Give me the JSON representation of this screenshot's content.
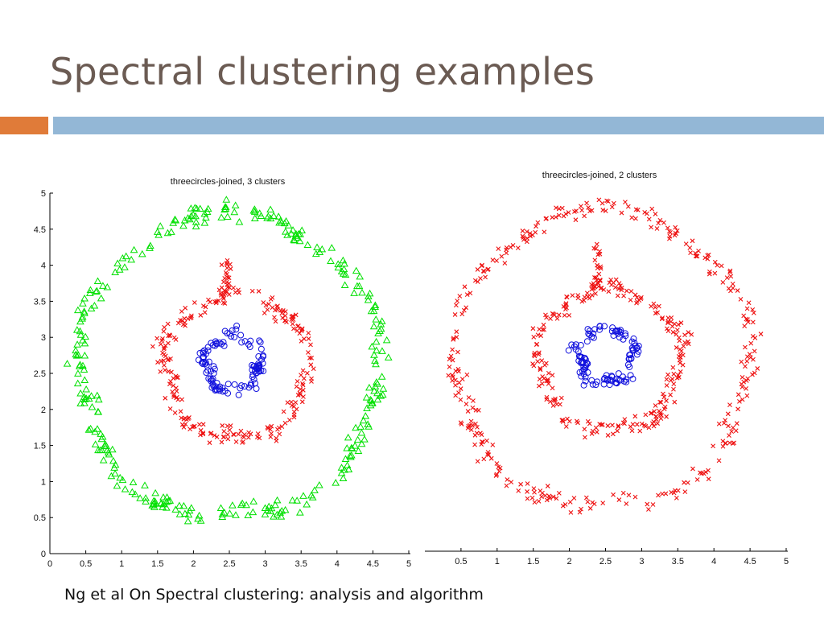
{
  "slide": {
    "title": "Spectral clustering examples",
    "caption": "Ng et al On Spectral clustering: analysis and algorithm",
    "colors": {
      "title": "#6b5b53",
      "accent_orange": "#e07b39",
      "accent_blue": "#93b7d6"
    }
  },
  "chart_data": [
    {
      "type": "scatter",
      "title": "threecircles-joined, 3 clusters",
      "xlim": [
        0,
        5
      ],
      "ylim": [
        0,
        5
      ],
      "xticks": [
        "0",
        "0.5",
        "1",
        "1.5",
        "2",
        "2.5",
        "3",
        "3.5",
        "4",
        "4.5",
        "5"
      ],
      "yticks": [
        "0",
        "0.5",
        "1",
        "1.5",
        "2",
        "2.5",
        "3",
        "3.5",
        "4",
        "4.5",
        "5"
      ],
      "grid": false,
      "series": [
        {
          "shape": "ring",
          "marker": "triangle",
          "color": "#00e000",
          "center": [
            2.5,
            2.6
          ],
          "radius": 2.1,
          "spread": 0.1,
          "count": 320
        },
        {
          "shape": "ring",
          "marker": "x",
          "color": "#ee1111",
          "center": [
            2.6,
            2.6
          ],
          "radius": 1.0,
          "spread": 0.09,
          "count": 230,
          "bridge": {
            "x": [
              2.4,
              2.5
            ],
            "y": [
              3.45,
              4.15
            ],
            "count": 22
          }
        },
        {
          "shape": "ring",
          "marker": "circle",
          "color": "#1010dd",
          "center": [
            2.55,
            2.65
          ],
          "radius": 0.38,
          "spread": 0.07,
          "count": 110
        }
      ]
    },
    {
      "type": "scatter",
      "title": "threecircles-joined, 2 clusters",
      "xlim": [
        0,
        5
      ],
      "ylim": [
        0,
        5
      ],
      "xticks": [
        "0.5",
        "1",
        "1.5",
        "2",
        "2.5",
        "3",
        "3.5",
        "4",
        "4.5",
        "5"
      ],
      "grid": false,
      "series": [
        {
          "shape": "ring",
          "marker": "x",
          "color": "#ee1111",
          "center": [
            2.45,
            2.65
          ],
          "radius": 2.05,
          "spread": 0.1,
          "count": 320
        },
        {
          "shape": "ring",
          "marker": "x",
          "color": "#ee1111",
          "center": [
            2.55,
            2.65
          ],
          "radius": 0.98,
          "spread": 0.09,
          "count": 230,
          "bridge": {
            "x": [
              2.35,
              2.45
            ],
            "y": [
              3.55,
              4.25
            ],
            "count": 22
          }
        },
        {
          "shape": "ring",
          "marker": "circle",
          "color": "#1010dd",
          "center": [
            2.5,
            2.7
          ],
          "radius": 0.38,
          "spread": 0.07,
          "count": 110
        }
      ]
    }
  ]
}
